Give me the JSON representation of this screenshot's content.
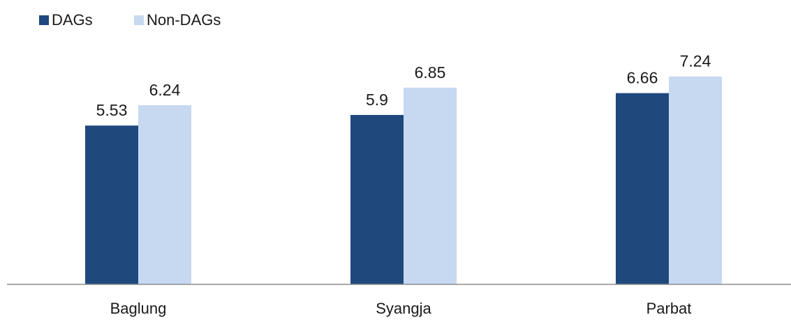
{
  "chart_data": {
    "type": "bar",
    "title": "",
    "xlabel": "",
    "ylabel": "",
    "categories": [
      "Baglung",
      "Syangja",
      "Parbat"
    ],
    "series": [
      {
        "name": "DAGs",
        "values": [
          5.53,
          5.9,
          6.66
        ],
        "color": "#1f497d"
      },
      {
        "name": "Non-DAGs",
        "values": [
          6.24,
          6.85,
          7.24
        ],
        "color": "#c6d9f1"
      }
    ],
    "ylim": [
      0,
      8
    ],
    "grid": false,
    "legend_position": "top-left",
    "axis_color": "#8c8c8c"
  }
}
